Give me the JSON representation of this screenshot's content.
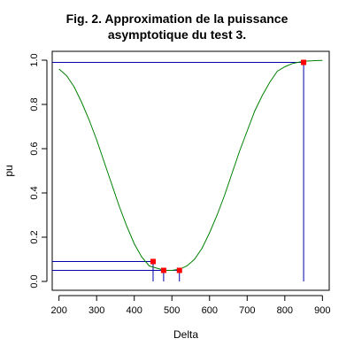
{
  "chart_data": {
    "type": "line",
    "title_lines": [
      "Fig. 2. Approximation de la puissance",
      "asymptotique du test 3."
    ],
    "xlabel": "Delta",
    "ylabel": "pu",
    "xlim": [
      182,
      918
    ],
    "ylim": [
      -0.04,
      1.04
    ],
    "grid": false,
    "x_ticks": [
      200,
      300,
      400,
      500,
      600,
      700,
      800,
      900
    ],
    "y_ticks": [
      0.0,
      0.2,
      0.4,
      0.6,
      0.8,
      1.0
    ],
    "y_tick_labels": [
      "0.0",
      "0.2",
      "0.4",
      "0.6",
      "0.8",
      "1.0"
    ],
    "series": [
      {
        "color": "#008000",
        "x": [
          200,
          220,
          240,
          260,
          280,
          300,
          320,
          340,
          360,
          380,
          400,
          420,
          440,
          460,
          480,
          500,
          520,
          540,
          560,
          580,
          600,
          620,
          640,
          660,
          680,
          700,
          720,
          740,
          760,
          780,
          800,
          820,
          840,
          860,
          880,
          900
        ],
        "y": [
          0.96,
          0.93,
          0.88,
          0.81,
          0.73,
          0.64,
          0.54,
          0.44,
          0.34,
          0.25,
          0.17,
          0.11,
          0.07,
          0.06,
          0.05,
          0.05,
          0.055,
          0.07,
          0.1,
          0.15,
          0.22,
          0.3,
          0.39,
          0.49,
          0.59,
          0.68,
          0.77,
          0.84,
          0.9,
          0.95,
          0.97,
          0.985,
          0.992,
          0.996,
          0.998,
          0.999
        ]
      }
    ],
    "points": {
      "color": "#ff0000",
      "x": [
        450,
        478,
        520,
        850
      ],
      "y": [
        0.09,
        0.05,
        0.05,
        0.99
      ]
    },
    "reference_lines": {
      "color": "#0000aa",
      "horizontal": [
        {
          "y": 0.99,
          "x_to": 850
        },
        {
          "y": 0.09,
          "x_to": 450
        },
        {
          "y": 0.05,
          "x_to": 520
        }
      ],
      "vertical": [
        {
          "x": 450,
          "y_to": 0.09
        },
        {
          "x": 478,
          "y_to": 0.05
        },
        {
          "x": 520,
          "y_to": 0.05
        },
        {
          "x": 850,
          "y_to": 0.99
        }
      ]
    }
  }
}
